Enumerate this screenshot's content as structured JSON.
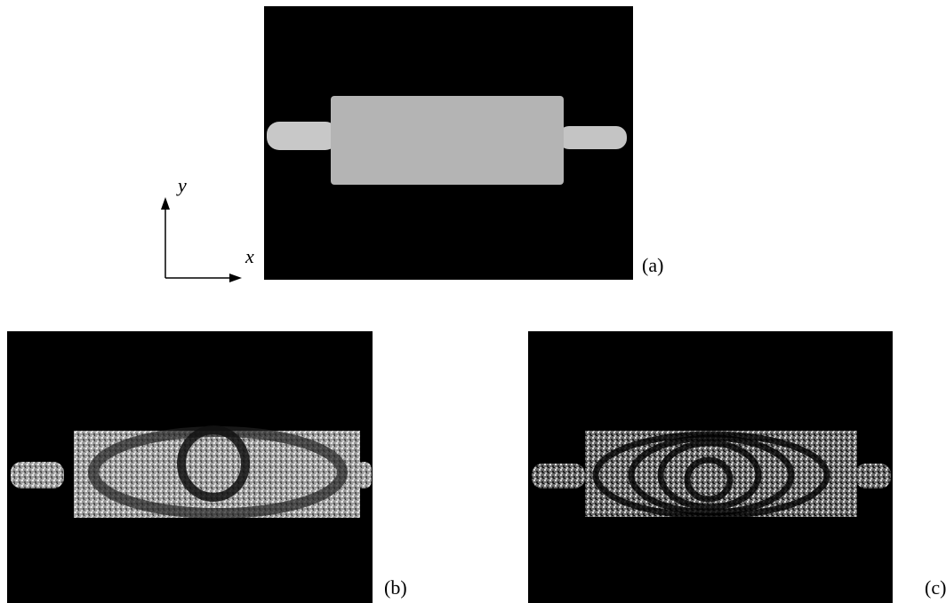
{
  "axes": {
    "x": "x",
    "y": "y"
  },
  "panels": [
    {
      "label": "(a)"
    },
    {
      "label": "(b)"
    },
    {
      "label": "(c)"
    }
  ]
}
